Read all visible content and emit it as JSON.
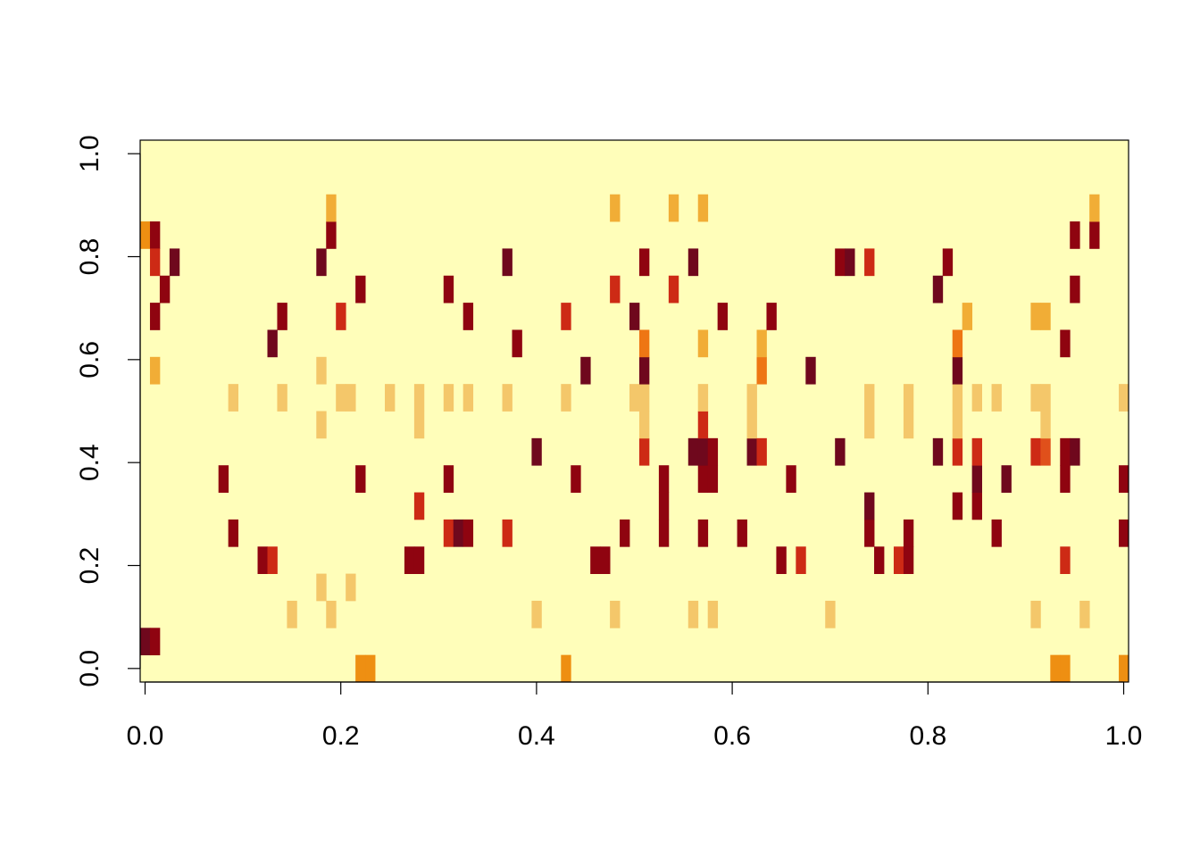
{
  "chart_data": {
    "type": "heatmap",
    "title": "",
    "xlabel": "",
    "ylabel": "",
    "xlim": [
      0,
      1
    ],
    "ylim": [
      0,
      1
    ],
    "ncols": 101,
    "nrows": 20,
    "x_ticks": [
      "0.0",
      "0.2",
      "0.4",
      "0.6",
      "0.8",
      "1.0"
    ],
    "y_ticks": [
      "0.0",
      "0.2",
      "0.4",
      "0.6",
      "0.8",
      "1.0"
    ],
    "background_color": "#FFFEBA",
    "colors": [
      "#FFFEBA",
      "#F4C76A",
      "#F1AD36",
      "#EE8F12",
      "#EE7614",
      "#E0501B",
      "#CD2A15",
      "#AD0B0B",
      "#8F0410",
      "#6F081D"
    ],
    "legend": "none",
    "grid": false,
    "cells": [
      [
        0,
        1,
        9
      ],
      [
        1,
        1,
        8
      ],
      [
        0,
        16,
        3
      ],
      [
        1,
        16,
        8
      ],
      [
        1,
        15,
        6
      ],
      [
        1,
        13,
        8
      ],
      [
        1,
        11,
        2
      ],
      [
        2,
        14,
        8
      ],
      [
        3,
        15,
        9
      ],
      [
        8,
        7,
        8
      ],
      [
        9,
        5,
        8
      ],
      [
        9,
        10,
        1
      ],
      [
        12,
        4,
        8
      ],
      [
        13,
        4,
        6
      ],
      [
        13,
        12,
        9
      ],
      [
        14,
        10,
        1
      ],
      [
        14,
        13,
        8
      ],
      [
        15,
        2,
        1
      ],
      [
        18,
        3,
        1
      ],
      [
        18,
        9,
        1
      ],
      [
        18,
        11,
        1
      ],
      [
        18,
        15,
        9
      ],
      [
        19,
        2,
        1
      ],
      [
        19,
        16,
        8
      ],
      [
        19,
        17,
        2
      ],
      [
        20,
        10,
        1
      ],
      [
        20,
        13,
        6
      ],
      [
        21,
        3,
        1
      ],
      [
        21,
        10,
        1
      ],
      [
        22,
        0,
        3
      ],
      [
        22,
        7,
        8
      ],
      [
        22,
        14,
        8
      ],
      [
        23,
        0,
        3
      ],
      [
        25,
        10,
        1
      ],
      [
        27,
        4,
        8
      ],
      [
        28,
        4,
        8
      ],
      [
        28,
        9,
        1
      ],
      [
        28,
        10,
        1
      ],
      [
        28,
        6,
        6
      ],
      [
        31,
        5,
        6
      ],
      [
        31,
        7,
        8
      ],
      [
        31,
        10,
        1
      ],
      [
        31,
        14,
        8
      ],
      [
        32,
        5,
        9
      ],
      [
        33,
        5,
        8
      ],
      [
        33,
        10,
        1
      ],
      [
        33,
        13,
        8
      ],
      [
        37,
        5,
        6
      ],
      [
        37,
        10,
        1
      ],
      [
        37,
        15,
        9
      ],
      [
        38,
        12,
        8
      ],
      [
        40,
        2,
        1
      ],
      [
        40,
        8,
        9
      ],
      [
        43,
        0,
        3
      ],
      [
        43,
        10,
        1
      ],
      [
        43,
        13,
        6
      ],
      [
        44,
        7,
        8
      ],
      [
        45,
        11,
        9
      ],
      [
        46,
        4,
        8
      ],
      [
        47,
        4,
        8
      ],
      [
        48,
        2,
        1
      ],
      [
        48,
        14,
        6
      ],
      [
        48,
        17,
        2
      ],
      [
        49,
        5,
        8
      ],
      [
        50,
        10,
        1
      ],
      [
        50,
        13,
        9
      ],
      [
        51,
        8,
        6
      ],
      [
        51,
        9,
        1
      ],
      [
        51,
        10,
        1
      ],
      [
        51,
        11,
        9
      ],
      [
        51,
        12,
        4
      ],
      [
        51,
        15,
        8
      ],
      [
        53,
        7,
        8
      ],
      [
        53,
        6,
        8
      ],
      [
        53,
        5,
        8
      ],
      [
        54,
        14,
        6
      ],
      [
        54,
        17,
        2
      ],
      [
        56,
        2,
        1
      ],
      [
        56,
        8,
        9
      ],
      [
        56,
        15,
        9
      ],
      [
        57,
        5,
        8
      ],
      [
        57,
        7,
        8
      ],
      [
        57,
        8,
        9
      ],
      [
        57,
        9,
        6
      ],
      [
        57,
        10,
        1
      ],
      [
        57,
        12,
        2
      ],
      [
        57,
        17,
        2
      ],
      [
        58,
        2,
        1
      ],
      [
        58,
        8,
        8
      ],
      [
        58,
        7,
        8
      ],
      [
        59,
        13,
        8
      ],
      [
        61,
        5,
        8
      ],
      [
        62,
        8,
        9
      ],
      [
        62,
        9,
        1
      ],
      [
        62,
        10,
        1
      ],
      [
        63,
        8,
        6
      ],
      [
        63,
        11,
        4
      ],
      [
        63,
        12,
        2
      ],
      [
        64,
        13,
        8
      ],
      [
        65,
        4,
        8
      ],
      [
        66,
        7,
        8
      ],
      [
        67,
        4,
        6
      ],
      [
        68,
        11,
        9
      ],
      [
        70,
        2,
        1
      ],
      [
        71,
        8,
        9
      ],
      [
        71,
        15,
        8
      ],
      [
        72,
        15,
        9
      ],
      [
        74,
        5,
        8
      ],
      [
        74,
        6,
        9
      ],
      [
        74,
        9,
        1
      ],
      [
        74,
        10,
        1
      ],
      [
        74,
        15,
        6
      ],
      [
        75,
        4,
        8
      ],
      [
        77,
        4,
        6
      ],
      [
        78,
        4,
        8
      ],
      [
        78,
        5,
        8
      ],
      [
        78,
        9,
        1
      ],
      [
        78,
        10,
        1
      ],
      [
        81,
        8,
        9
      ],
      [
        81,
        14,
        9
      ],
      [
        82,
        15,
        8
      ],
      [
        83,
        6,
        8
      ],
      [
        83,
        8,
        6
      ],
      [
        83,
        9,
        1
      ],
      [
        83,
        10,
        1
      ],
      [
        83,
        11,
        9
      ],
      [
        83,
        12,
        4
      ],
      [
        84,
        13,
        2
      ],
      [
        85,
        6,
        8
      ],
      [
        85,
        7,
        9
      ],
      [
        85,
        8,
        6
      ],
      [
        85,
        10,
        1
      ],
      [
        87,
        5,
        8
      ],
      [
        87,
        10,
        1
      ],
      [
        88,
        7,
        9
      ],
      [
        91,
        2,
        1
      ],
      [
        91,
        8,
        6
      ],
      [
        91,
        10,
        1
      ],
      [
        91,
        13,
        2
      ],
      [
        92,
        8,
        5
      ],
      [
        92,
        9,
        1
      ],
      [
        92,
        10,
        1
      ],
      [
        92,
        13,
        2
      ],
      [
        93,
        0,
        3
      ],
      [
        94,
        0,
        3
      ],
      [
        94,
        4,
        6
      ],
      [
        94,
        7,
        8
      ],
      [
        94,
        8,
        8
      ],
      [
        94,
        12,
        8
      ],
      [
        95,
        8,
        9
      ],
      [
        95,
        14,
        8
      ],
      [
        95,
        16,
        8
      ],
      [
        96,
        2,
        1
      ],
      [
        97,
        16,
        8
      ],
      [
        97,
        17,
        2
      ],
      [
        100,
        0,
        3
      ],
      [
        100,
        5,
        8
      ],
      [
        100,
        7,
        8
      ],
      [
        100,
        10,
        1
      ]
    ]
  }
}
